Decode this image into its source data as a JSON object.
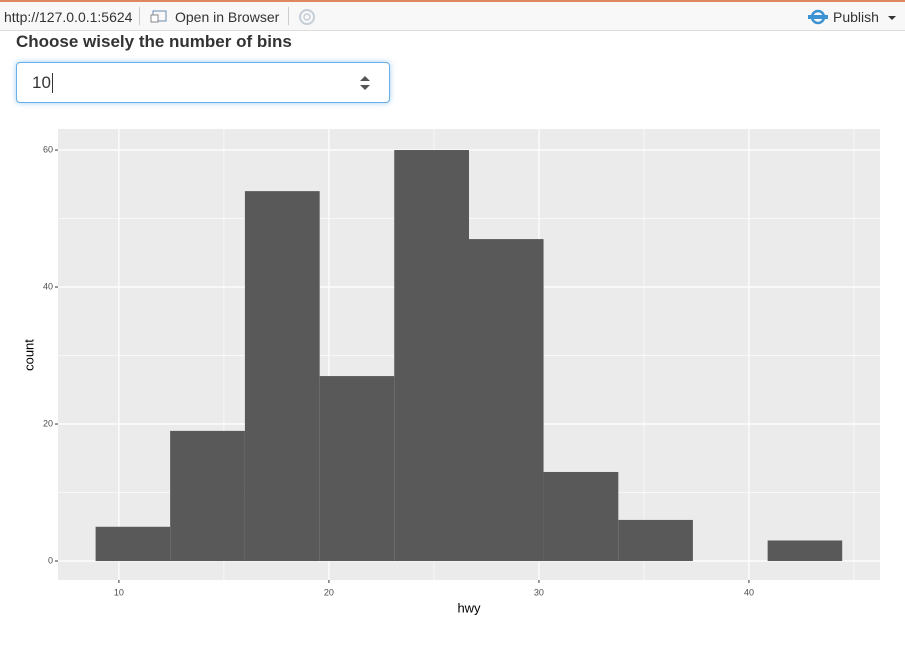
{
  "toolbar": {
    "url": "http://127.0.0.1:5624",
    "open_button": "Open in Browser",
    "publish_button": "Publish"
  },
  "input": {
    "label": "Choose wisely the number of bins",
    "value": 10
  },
  "chart_data": {
    "type": "histogram",
    "x_label": "hwy",
    "y_label": "count",
    "bins": [
      8.89,
      12.44,
      16,
      19.56,
      23.11,
      26.67,
      30.22,
      33.78,
      37.33,
      40.89,
      44.44
    ],
    "values": [
      5,
      19,
      54,
      27,
      60,
      47,
      13,
      6,
      0,
      3
    ],
    "color": "#595959",
    "xlim": [
      7.1,
      46.24
    ],
    "ylim": [
      -2.77,
      63.07
    ],
    "xticks": [
      10,
      20,
      30,
      40
    ],
    "yticks": [
      0,
      20,
      40,
      60
    ],
    "xminorticks": [
      15,
      25,
      35,
      45
    ],
    "yminorticks": [
      10,
      30,
      50
    ],
    "grid": true
  }
}
